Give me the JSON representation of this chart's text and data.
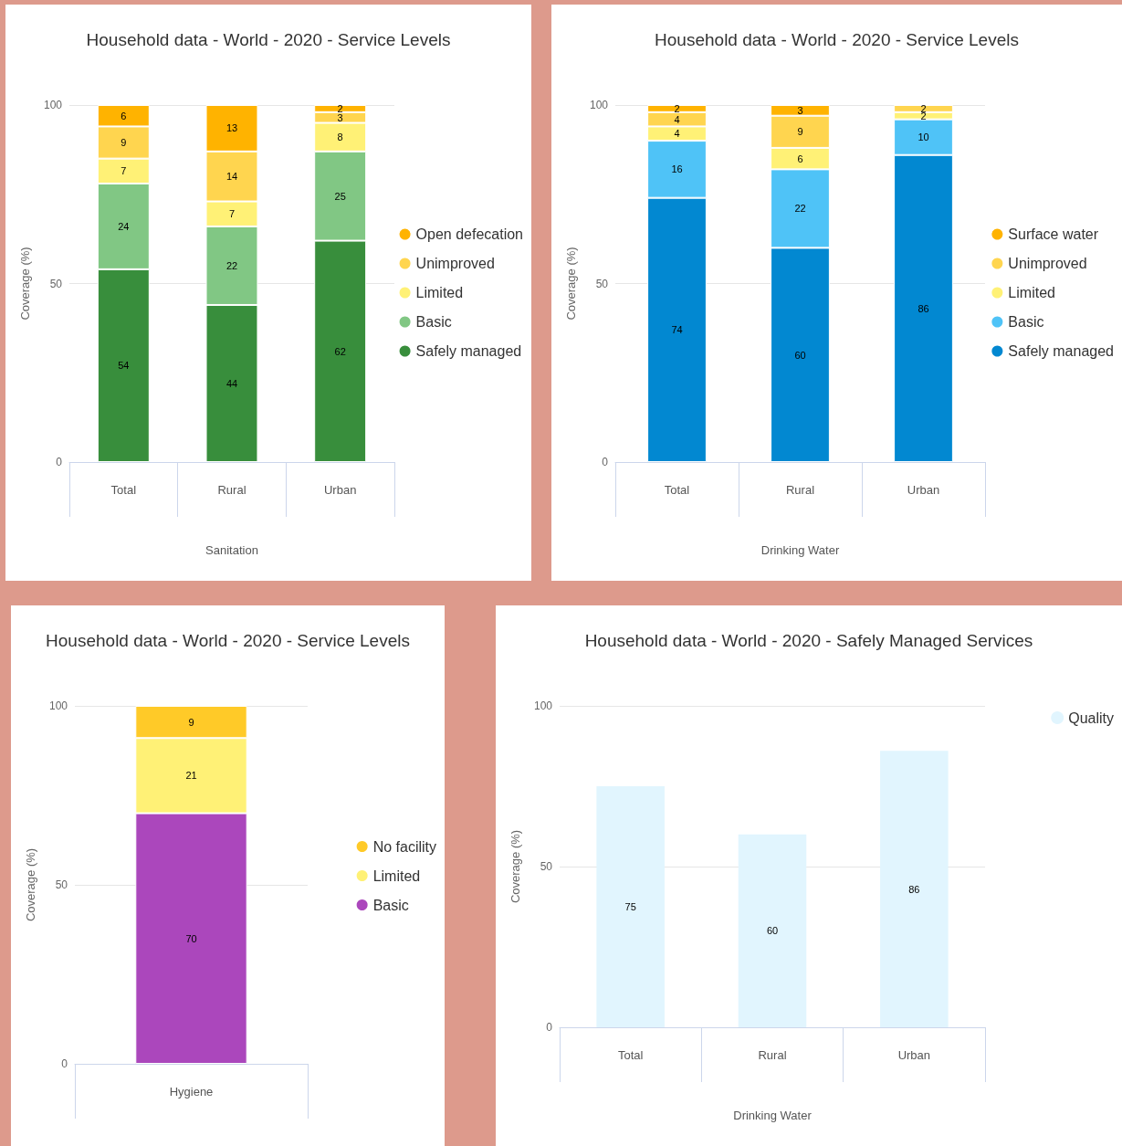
{
  "chart_data": [
    {
      "type": "bar",
      "title": "Household data - World - 2020 - Service Levels",
      "xlabel": "Sanitation",
      "ylabel": "Coverage (%)",
      "categories": [
        "Total",
        "Rural",
        "Urban"
      ],
      "stacked": true,
      "data_labels": true,
      "grid": "y",
      "legend": "right",
      "ylim": [
        0,
        100
      ],
      "yticks": [
        0,
        50,
        100
      ],
      "series": [
        {
          "name": "Safely managed",
          "color": "#388e3c",
          "values": [
            54,
            44,
            62
          ]
        },
        {
          "name": "Basic",
          "color": "#81c784",
          "values": [
            24,
            22,
            25
          ]
        },
        {
          "name": "Limited",
          "color": "#fff176",
          "values": [
            7,
            7,
            8
          ]
        },
        {
          "name": "Unimproved",
          "color": "#ffd54f",
          "values": [
            9,
            14,
            3
          ]
        },
        {
          "name": "Open defecation",
          "color": "#ffb300",
          "values": [
            6,
            13,
            2
          ]
        }
      ]
    },
    {
      "type": "bar",
      "title": "Household data - World - 2020 - Service Levels",
      "xlabel": "Drinking Water",
      "ylabel": "Coverage (%)",
      "categories": [
        "Total",
        "Rural",
        "Urban"
      ],
      "stacked": true,
      "data_labels": true,
      "grid": "y",
      "legend": "right",
      "ylim": [
        0,
        100
      ],
      "yticks": [
        0,
        50,
        100
      ],
      "series": [
        {
          "name": "Safely managed",
          "color": "#0288d1",
          "values": [
            74,
            60,
            86
          ]
        },
        {
          "name": "Basic",
          "color": "#4fc3f7",
          "values": [
            16,
            22,
            10
          ]
        },
        {
          "name": "Limited",
          "color": "#fff176",
          "values": [
            4,
            6,
            2
          ]
        },
        {
          "name": "Unimproved",
          "color": "#ffd54f",
          "values": [
            4,
            9,
            2
          ]
        },
        {
          "name": "Surface water",
          "color": "#ffb300",
          "values": [
            2,
            3,
            null
          ]
        }
      ]
    },
    {
      "type": "bar",
      "title": "Household data - World - 2020 - Service Levels",
      "ylabel": "Coverage (%)",
      "categories": [
        "Hygiene"
      ],
      "stacked": true,
      "data_labels": true,
      "grid": "y",
      "legend": "right",
      "ylim": [
        0,
        100
      ],
      "yticks": [
        0,
        50,
        100
      ],
      "series": [
        {
          "name": "Basic",
          "color": "#ab47bc",
          "values": [
            70
          ]
        },
        {
          "name": "Limited",
          "color": "#fff176",
          "values": [
            21
          ]
        },
        {
          "name": "No facility",
          "color": "#ffca28",
          "values": [
            9
          ]
        }
      ]
    },
    {
      "type": "bar",
      "title": "Household data - World - 2020 - Safely Managed Services",
      "xlabel": "Drinking Water",
      "ylabel": "Coverage (%)",
      "categories": [
        "Total",
        "Rural",
        "Urban"
      ],
      "data_labels": true,
      "grid": "y",
      "legend": "top right",
      "ylim": [
        0,
        100
      ],
      "yticks": [
        0,
        50,
        100
      ],
      "series": [
        {
          "name": "Quality",
          "color": "#e1f5fe",
          "values": [
            75,
            60,
            86
          ]
        }
      ]
    }
  ]
}
